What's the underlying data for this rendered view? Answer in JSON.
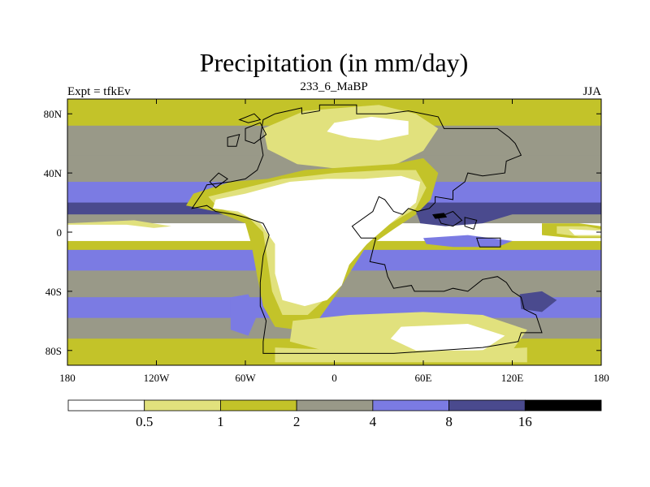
{
  "chart_data": {
    "type": "filled-contour-map",
    "title": "Precipitation (in mm/day)",
    "left_label": "Expt = tfkEv",
    "center_label": "233_6_MaBP",
    "right_label": "JJA",
    "x_ticks": [
      "180",
      "120W",
      "60W",
      "0",
      "60E",
      "120E",
      "180"
    ],
    "x_tick_values": [
      -180,
      -120,
      -60,
      0,
      60,
      120,
      180
    ],
    "y_ticks": [
      "80N",
      "40N",
      "0",
      "40S",
      "80S"
    ],
    "y_tick_values": [
      80,
      40,
      0,
      -40,
      -80
    ],
    "xlim": [
      -180,
      180
    ],
    "ylim": [
      -90,
      90
    ],
    "colorbar": {
      "levels": [
        "0.5",
        "1",
        "2",
        "4",
        "8",
        "16"
      ],
      "level_values": [
        0.5,
        1,
        2,
        4,
        8,
        16
      ],
      "colors": [
        "#ffffff",
        "#e1e17d",
        "#c3c329",
        "#999988",
        "#7b7be3",
        "#4a4a8e",
        "#000000"
      ]
    },
    "zonal_bands": [
      {
        "lat_min": 72,
        "lat_max": 90,
        "bin": 2
      },
      {
        "lat_min": 52,
        "lat_max": 72,
        "bin": 3
      },
      {
        "lat_min": 34,
        "lat_max": 52,
        "bin": 3
      },
      {
        "lat_min": 20,
        "lat_max": 34,
        "bin": 4
      },
      {
        "lat_min": 12,
        "lat_max": 20,
        "bin": 5
      },
      {
        "lat_min": 6,
        "lat_max": 12,
        "bin": 3
      },
      {
        "lat_min": -6,
        "lat_max": 6,
        "bin": 0
      },
      {
        "lat_min": -12,
        "lat_max": -6,
        "bin": 2
      },
      {
        "lat_min": -26,
        "lat_max": -12,
        "bin": 4
      },
      {
        "lat_min": -44,
        "lat_max": -26,
        "bin": 3
      },
      {
        "lat_min": -58,
        "lat_max": -44,
        "bin": 4
      },
      {
        "lat_min": -72,
        "lat_max": -58,
        "bin": 3
      },
      {
        "lat_min": -90,
        "lat_max": -72,
        "bin": 2
      }
    ],
    "regions": [
      {
        "bin": 1,
        "points": [
          [
            -48,
            70
          ],
          [
            -20,
            82
          ],
          [
            5,
            84
          ],
          [
            30,
            86
          ],
          [
            55,
            80
          ],
          [
            70,
            70
          ],
          [
            60,
            55
          ],
          [
            40,
            45
          ],
          [
            10,
            42
          ],
          [
            -25,
            46
          ],
          [
            -45,
            56
          ]
        ]
      },
      {
        "bin": 0,
        "points": [
          [
            0,
            74
          ],
          [
            25,
            78
          ],
          [
            50,
            75
          ],
          [
            50,
            66
          ],
          [
            30,
            62
          ],
          [
            10,
            64
          ],
          [
            -5,
            68
          ]
        ]
      },
      {
        "bin": 2,
        "points": [
          [
            -95,
            26
          ],
          [
            -70,
            34
          ],
          [
            -45,
            36
          ],
          [
            -20,
            42
          ],
          [
            10,
            44
          ],
          [
            40,
            46
          ],
          [
            60,
            50
          ],
          [
            70,
            40
          ],
          [
            65,
            22
          ],
          [
            55,
            12
          ],
          [
            40,
            2
          ],
          [
            20,
            -12
          ],
          [
            10,
            -28
          ],
          [
            0,
            -44
          ],
          [
            -10,
            -58
          ],
          [
            -25,
            -66
          ],
          [
            -40,
            -64
          ],
          [
            -48,
            -50
          ],
          [
            -52,
            -30
          ],
          [
            -56,
            -8
          ],
          [
            -60,
            6
          ],
          [
            -80,
            14
          ],
          [
            -100,
            18
          ]
        ]
      },
      {
        "bin": 1,
        "points": [
          [
            -85,
            24
          ],
          [
            -60,
            30
          ],
          [
            -35,
            36
          ],
          [
            0,
            40
          ],
          [
            35,
            42
          ],
          [
            55,
            42
          ],
          [
            62,
            30
          ],
          [
            55,
            16
          ],
          [
            35,
            4
          ],
          [
            20,
            -10
          ],
          [
            5,
            -28
          ],
          [
            -5,
            -44
          ],
          [
            -18,
            -56
          ],
          [
            -35,
            -56
          ],
          [
            -42,
            -40
          ],
          [
            -45,
            -20
          ],
          [
            -48,
            0
          ],
          [
            -58,
            10
          ],
          [
            -78,
            16
          ]
        ]
      },
      {
        "bin": 0,
        "points": [
          [
            -80,
            22
          ],
          [
            -60,
            26
          ],
          [
            -45,
            30
          ],
          [
            -30,
            34
          ],
          [
            -5,
            36
          ],
          [
            20,
            36
          ],
          [
            45,
            38
          ],
          [
            58,
            34
          ],
          [
            55,
            20
          ],
          [
            38,
            6
          ],
          [
            22,
            -8
          ],
          [
            10,
            -22
          ],
          [
            5,
            -36
          ],
          [
            -5,
            -46
          ],
          [
            -20,
            -50
          ],
          [
            -35,
            -46
          ],
          [
            -40,
            -28
          ],
          [
            -40,
            -8
          ],
          [
            -50,
            6
          ],
          [
            -65,
            14
          ],
          [
            -82,
            16
          ]
        ]
      },
      {
        "bin": 1,
        "points": [
          [
            -180,
            6
          ],
          [
            -135,
            8
          ],
          [
            -110,
            4
          ],
          [
            -130,
            2
          ],
          [
            -180,
            2
          ]
        ]
      },
      {
        "bin": 0,
        "points": [
          [
            -180,
            5
          ],
          [
            -140,
            5
          ],
          [
            -115,
            2
          ],
          [
            -140,
            -1
          ],
          [
            -180,
            -1
          ]
        ]
      },
      {
        "bin": 2,
        "points": [
          [
            140,
            6
          ],
          [
            165,
            6
          ],
          [
            180,
            4
          ],
          [
            180,
            -4
          ],
          [
            160,
            -4
          ],
          [
            140,
            -2
          ]
        ]
      },
      {
        "bin": 1,
        "points": [
          [
            150,
            4
          ],
          [
            170,
            4
          ],
          [
            180,
            2
          ],
          [
            180,
            -3
          ],
          [
            165,
            -3
          ],
          [
            150,
            -1
          ]
        ]
      },
      {
        "bin": 0,
        "points": [
          [
            158,
            2
          ],
          [
            180,
            1
          ],
          [
            180,
            -2
          ],
          [
            162,
            -2
          ]
        ]
      },
      {
        "bin": 5,
        "points": [
          [
            55,
            14
          ],
          [
            80,
            18
          ],
          [
            100,
            16
          ],
          [
            120,
            12
          ],
          [
            100,
            6
          ],
          [
            75,
            4
          ],
          [
            58,
            6
          ]
        ]
      },
      {
        "bin": 6,
        "points": [
          [
            66,
            12
          ],
          [
            74,
            13
          ],
          [
            76,
            10
          ],
          [
            68,
            9
          ]
        ]
      },
      {
        "bin": 4,
        "points": [
          [
            60,
            -4
          ],
          [
            90,
            -2
          ],
          [
            120,
            -6
          ],
          [
            110,
            -10
          ],
          [
            80,
            -10
          ],
          [
            62,
            -8
          ]
        ]
      },
      {
        "bin": 4,
        "points": [
          [
            -70,
            -44
          ],
          [
            -58,
            -42
          ],
          [
            -52,
            -56
          ],
          [
            -58,
            -70
          ],
          [
            -70,
            -66
          ]
        ]
      },
      {
        "bin": 5,
        "points": [
          [
            125,
            -42
          ],
          [
            140,
            -40
          ],
          [
            150,
            -46
          ],
          [
            140,
            -54
          ],
          [
            126,
            -52
          ]
        ]
      },
      {
        "bin": 1,
        "points": [
          [
            -28,
            -60
          ],
          [
            10,
            -56
          ],
          [
            60,
            -54
          ],
          [
            100,
            -56
          ],
          [
            130,
            -66
          ],
          [
            120,
            -80
          ],
          [
            60,
            -84
          ],
          [
            0,
            -82
          ],
          [
            -30,
            -74
          ]
        ]
      },
      {
        "bin": 0,
        "points": [
          [
            45,
            -64
          ],
          [
            90,
            -62
          ],
          [
            115,
            -70
          ],
          [
            100,
            -80
          ],
          [
            55,
            -80
          ],
          [
            38,
            -72
          ]
        ]
      },
      {
        "bin": 1,
        "points": [
          [
            -40,
            -78
          ],
          [
            60,
            -82
          ],
          [
            130,
            -78
          ],
          [
            130,
            -88
          ],
          [
            -40,
            -88
          ]
        ]
      }
    ],
    "coastlines": [
      [
        [
          -50,
          64
        ],
        [
          -48,
          76
        ],
        [
          -40,
          80
        ],
        [
          -22,
          84
        ],
        [
          -22,
          80
        ],
        [
          -10,
          82
        ],
        [
          -10,
          86
        ],
        [
          15,
          86
        ],
        [
          15,
          80
        ],
        [
          35,
          80
        ],
        [
          50,
          82
        ],
        [
          60,
          80
        ],
        [
          70,
          78
        ],
        [
          74,
          70
        ],
        [
          110,
          70
        ],
        [
          118,
          64
        ],
        [
          122,
          60
        ],
        [
          126,
          52
        ],
        [
          116,
          48
        ],
        [
          115,
          40
        ],
        [
          100,
          38
        ],
        [
          90,
          40
        ],
        [
          88,
          34
        ],
        [
          80,
          28
        ],
        [
          80,
          22
        ],
        [
          68,
          24
        ],
        [
          68,
          20
        ],
        [
          64,
          16
        ],
        [
          56,
          14
        ],
        [
          50,
          16
        ],
        [
          46,
          12
        ],
        [
          40,
          14
        ],
        [
          34,
          22
        ],
        [
          30,
          24
        ],
        [
          26,
          14
        ],
        [
          12,
          4
        ],
        [
          18,
          -4
        ],
        [
          28,
          -4
        ],
        [
          24,
          -20
        ],
        [
          34,
          -22
        ],
        [
          36,
          -30
        ],
        [
          40,
          -38
        ],
        [
          52,
          -36
        ],
        [
          54,
          -40
        ],
        [
          74,
          -40
        ],
        [
          80,
          -38
        ],
        [
          90,
          -40
        ],
        [
          100,
          -32
        ],
        [
          110,
          -30
        ],
        [
          116,
          -34
        ],
        [
          120,
          -40
        ],
        [
          126,
          -44
        ],
        [
          128,
          -52
        ],
        [
          136,
          -56
        ],
        [
          140,
          -68
        ],
        [
          126,
          -68
        ],
        [
          124,
          -74
        ],
        [
          112,
          -76
        ],
        [
          100,
          -78
        ],
        [
          40,
          -82
        ],
        [
          -48,
          -82
        ],
        [
          -48,
          -74
        ],
        [
          -46,
          -60
        ],
        [
          -50,
          -50
        ],
        [
          -50,
          -34
        ],
        [
          -48,
          -16
        ],
        [
          -44,
          -2
        ],
        [
          -48,
          6
        ],
        [
          -60,
          10
        ],
        [
          -68,
          12
        ],
        [
          -80,
          14
        ],
        [
          -86,
          18
        ],
        [
          -96,
          16
        ],
        [
          -92,
          22
        ],
        [
          -88,
          28
        ],
        [
          -86,
          32
        ],
        [
          -70,
          34
        ],
        [
          -60,
          36
        ],
        [
          -52,
          42
        ],
        [
          -48,
          52
        ],
        [
          -50,
          64
        ]
      ],
      [
        [
          -60,
          70
        ],
        [
          -50,
          74
        ],
        [
          -46,
          66
        ],
        [
          -54,
          60
        ],
        [
          -60,
          62
        ]
      ],
      [
        [
          -64,
          76
        ],
        [
          -54,
          80
        ],
        [
          -50,
          76
        ],
        [
          -58,
          74
        ]
      ],
      [
        [
          -72,
          64
        ],
        [
          -64,
          66
        ],
        [
          -66,
          58
        ],
        [
          -72,
          58
        ]
      ],
      [
        [
          -84,
          34
        ],
        [
          -78,
          40
        ],
        [
          -72,
          36
        ],
        [
          -80,
          30
        ]
      ],
      [
        [
          70,
          10
        ],
        [
          80,
          14
        ],
        [
          86,
          8
        ],
        [
          80,
          4
        ],
        [
          72,
          6
        ]
      ],
      [
        [
          88,
          10
        ],
        [
          96,
          8
        ],
        [
          94,
          2
        ],
        [
          88,
          4
        ]
      ],
      [
        [
          96,
          -4
        ],
        [
          112,
          -4
        ],
        [
          112,
          -10
        ],
        [
          98,
          -10
        ]
      ]
    ]
  }
}
